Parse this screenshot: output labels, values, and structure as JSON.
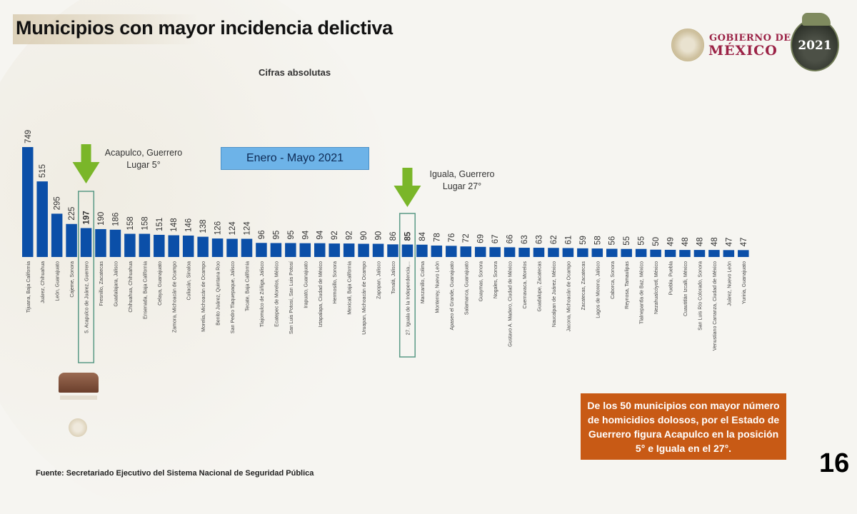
{
  "slide": {
    "title": "Municipios con mayor incidencia delictiva",
    "subtitle": "Cifras absolutas",
    "period": "Enero - Mayo 2021",
    "logo_gob_line1": "GOBIERNO DE",
    "logo_gob_line2": "MÉXICO",
    "badge_year": "2021",
    "annotation_acapulco": [
      "Acapulco, Guerrero",
      "Lugar 5°"
    ],
    "annotation_iguala": [
      "Iguala, Guerrero",
      "Lugar 27°"
    ],
    "note": "De los 50 municipios con mayor número de homicidios dolosos, por el Estado de Guerrero figura Acapulco en la posición 5° e Iguala en el 27°.",
    "source": "Fuente: Secretariado Ejecutivo del Sistema Nacional de Seguridad Pública",
    "page_number": "16",
    "colors": {
      "bar": "#0b4fa8",
      "arrow": "#7ab629",
      "highlight": "#5a9a86",
      "note_bg": "#c85a15",
      "period_bg": "#6db3e8",
      "logo": "#9b2246"
    }
  },
  "chart_data": {
    "type": "bar",
    "title": "Municipios con mayor incidencia delictiva",
    "subtitle": "Cifras absolutas",
    "xlabel": "",
    "ylabel": "",
    "ylim": [
      0,
      749
    ],
    "grid": false,
    "highlighted_indices": [
      4,
      26
    ],
    "categories": [
      "Tijuana, Baja California",
      "Juárez, Chihuahua",
      "León, Guanajuato",
      "Cajeme, Sonora",
      "5. Acapulco de Juárez, Guerrero",
      "Fresnillo, Zacatecas",
      "Guadalajara, Jalisco",
      "Chihuahua, Chihuahua",
      "Ensenada, Baja California",
      "Celaya, Guanajuato",
      "Zamora, Michoacán de Ocampo",
      "Culiacán, Sinaloa",
      "Morelia, Michoacán de Ocampo",
      "Benito Juárez, Quintana Roo",
      "San Pedro Tlaquepaque, Jalisco",
      "Tecate, Baja California",
      "Tlajomulco de Zúñiga, Jalisco",
      "Ecatepec de Morelos, México",
      "San Luis Potosí, San Luis Potosí",
      "Irapuato, Guanajuato",
      "Iztapalapa, Ciudad de México",
      "Hermosillo, Sonora",
      "Mexicali, Baja California",
      "Uruapan, Michoacán de Ocampo",
      "Zapopan, Jalisco",
      "Tonalá, Jalisco",
      "27. Iguala de la Independencia,...",
      "Manzanillo, Colima",
      "Monterrey, Nuevo León",
      "Apaseo el Grande, Guanajuato",
      "Salamanca, Guanajuato",
      "Guaymas, Sonora",
      "Nogales, Sonora",
      "Gustavo A. Madero, Ciudad de México",
      "Cuernavaca, Morelos",
      "Guadalupe, Zacatecas",
      "Naucalpan de Juárez, México",
      "Jacona, Michoacán de Ocampo",
      "Zacatecas, Zacatecas",
      "Lagos de Moreno, Jalisco",
      "Caborca, Sonora",
      "Reynosa, Tamaulipas",
      "Tlalnepantla de Baz, México",
      "Nezahualcóyotl, México",
      "Puebla, Puebla",
      "Cuautitlán Izcalli, México",
      "San Luis Río Colorado, Sonora",
      "Venustiano Carranza, Ciudad de México",
      "Juárez, Nuevo León",
      "Yuriria, Guanajuato"
    ],
    "values": [
      749,
      515,
      295,
      225,
      197,
      190,
      186,
      158,
      158,
      151,
      148,
      146,
      138,
      126,
      124,
      124,
      96,
      95,
      95,
      94,
      94,
      92,
      92,
      90,
      90,
      86,
      85,
      84,
      78,
      76,
      72,
      69,
      67,
      66,
      63,
      63,
      62,
      61,
      59,
      58,
      56,
      55,
      55,
      50,
      49,
      48,
      48,
      48,
      47,
      47
    ]
  }
}
